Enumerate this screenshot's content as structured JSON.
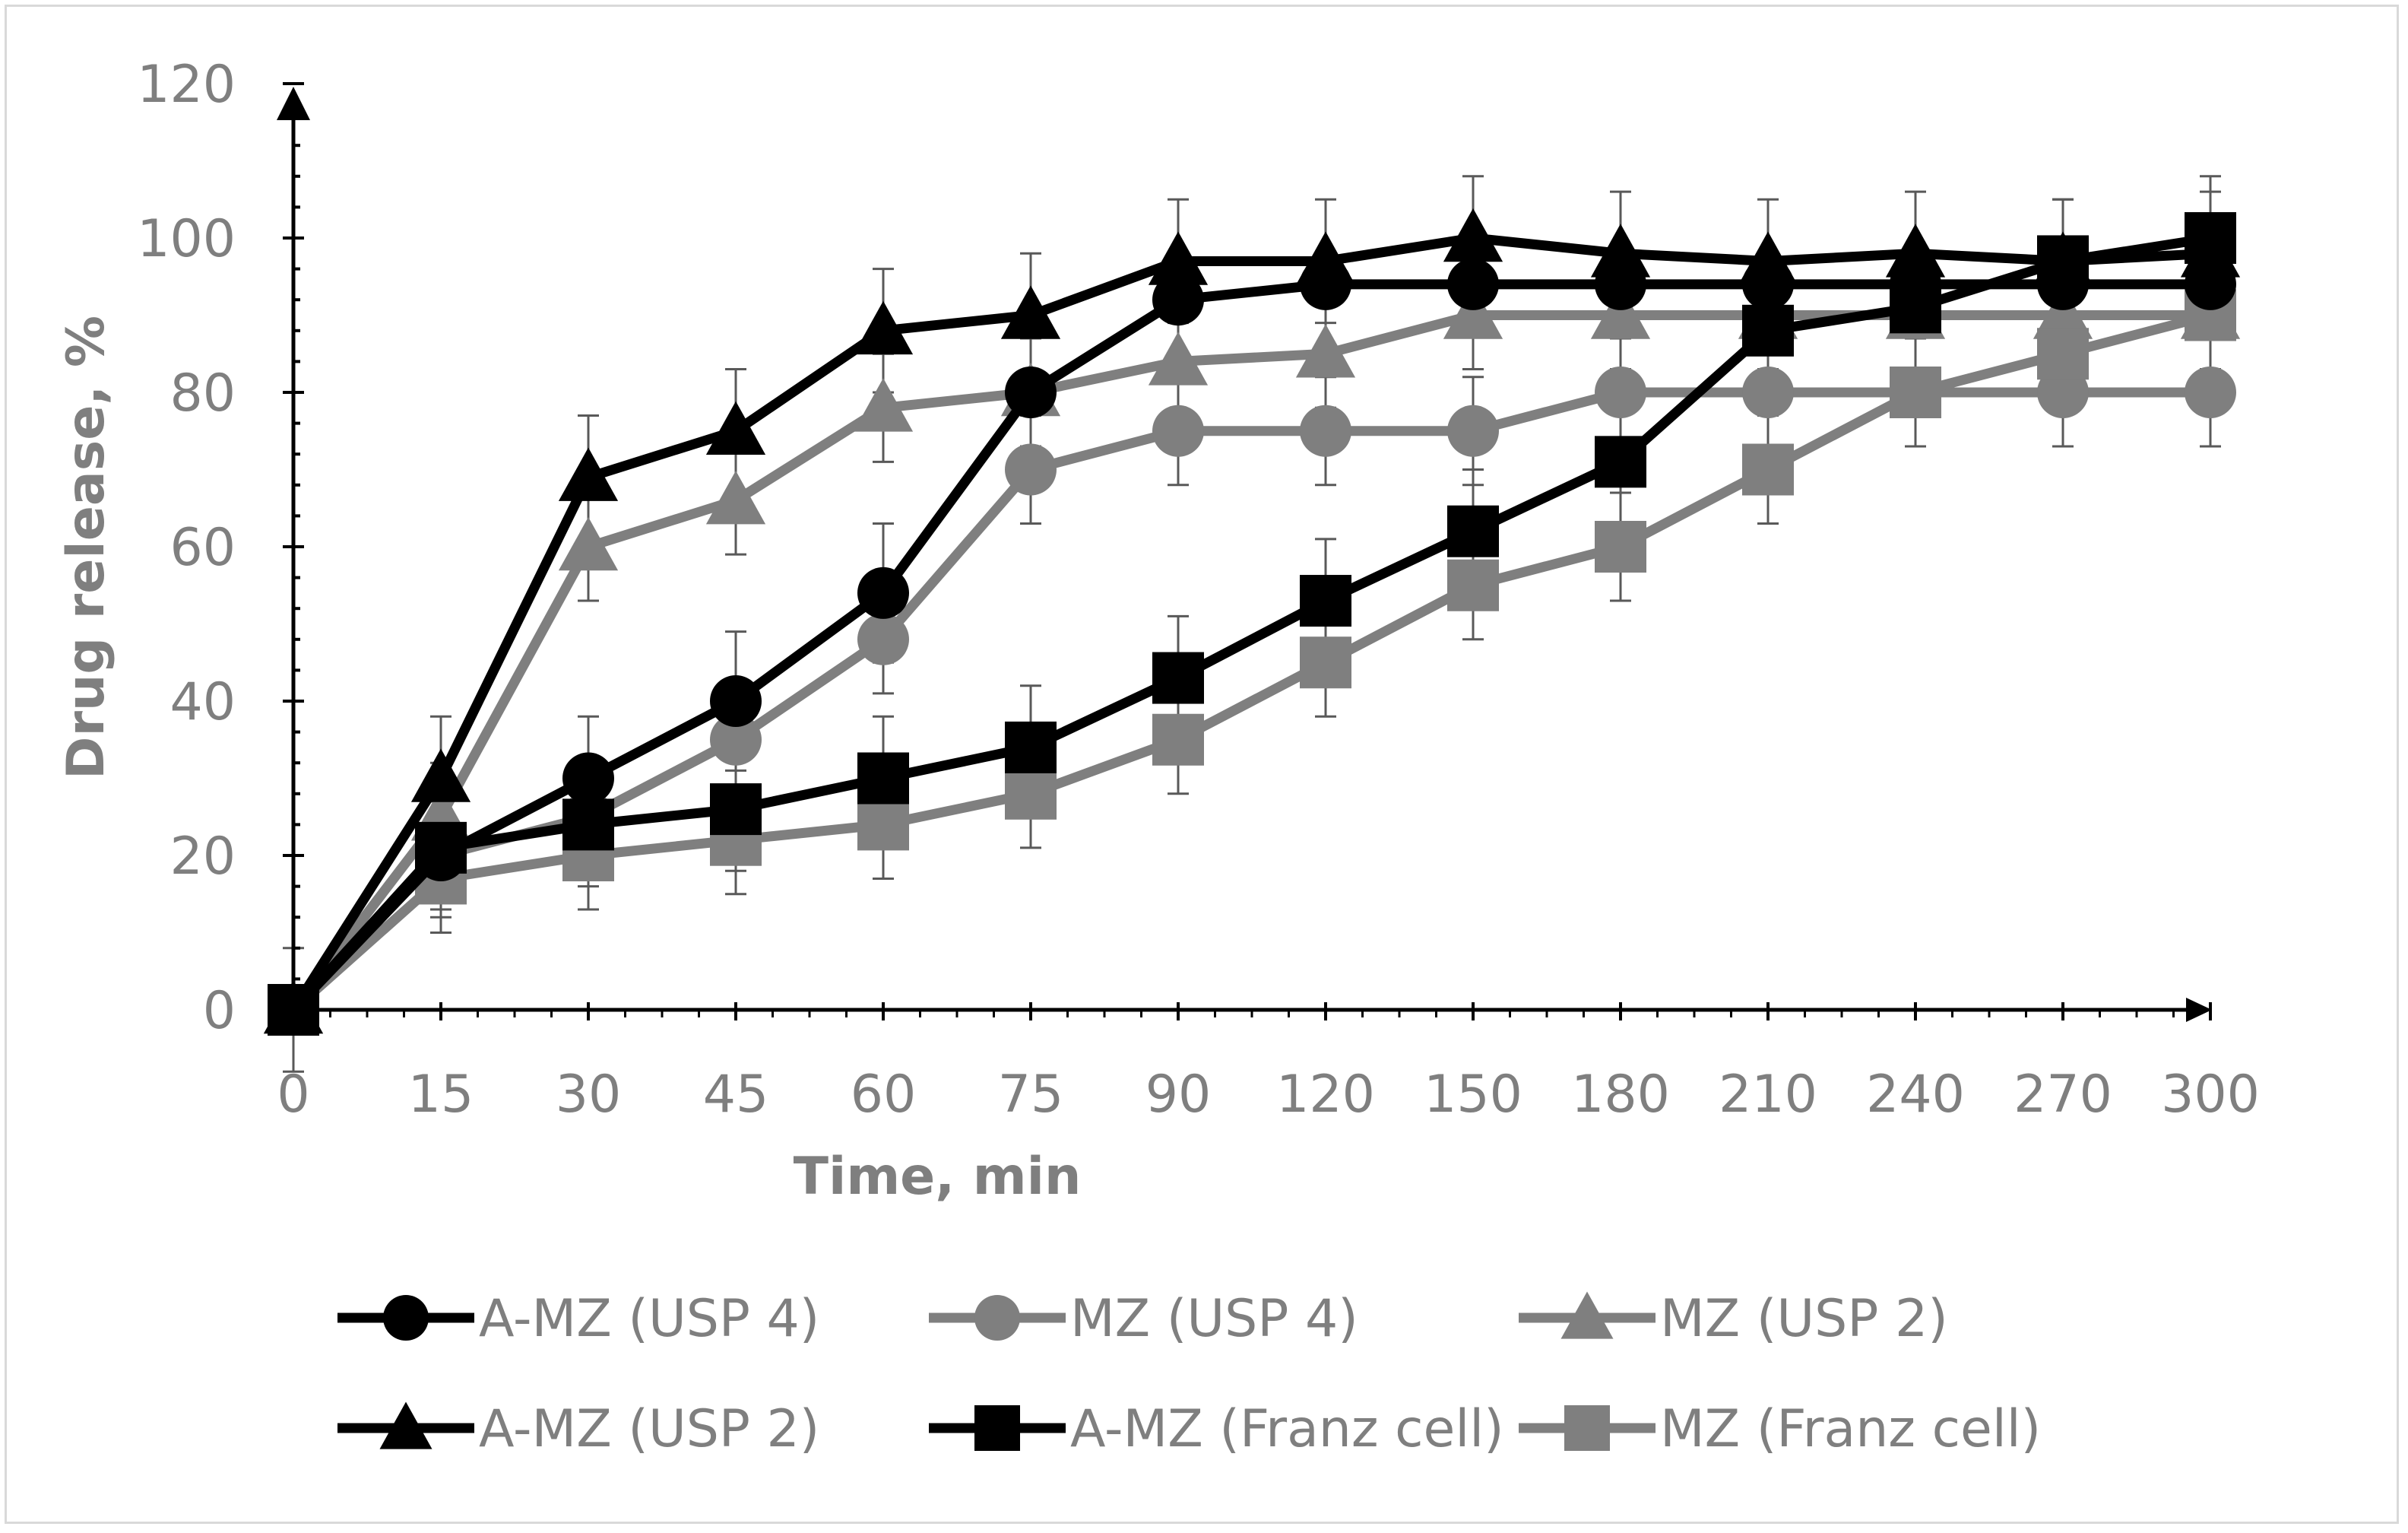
{
  "chart_data": {
    "type": "line",
    "title": "",
    "xlabel": "Time, min",
    "ylabel": "Drug release, %",
    "categories": [
      "0",
      "15",
      "30",
      "45",
      "60",
      "75",
      "90",
      "120",
      "150",
      "180",
      "210",
      "240",
      "270",
      "300"
    ],
    "ylim": [
      0,
      120
    ],
    "yticks": [
      "0",
      "20",
      "40",
      "60",
      "80",
      "100",
      "120"
    ],
    "legend_position": "bottom",
    "colors": {
      "black": "#000000",
      "gray": "#7f7f7f"
    },
    "series": [
      {
        "name": "A-MZ (USP 4)",
        "color": "#000000",
        "marker": "circle",
        "values": [
          0,
          20,
          30,
          40,
          54,
          80,
          92,
          94,
          94,
          94,
          94,
          94,
          94,
          94
        ],
        "errors": [
          0,
          8,
          8,
          9,
          9,
          0,
          0,
          0,
          0,
          0,
          0,
          0,
          0,
          0
        ]
      },
      {
        "name": "MZ (USP 4)",
        "color": "#7f7f7f",
        "marker": "circle",
        "values": [
          0,
          20,
          25,
          35,
          48,
          70,
          75,
          75,
          75,
          80,
          80,
          80,
          80,
          80
        ],
        "errors": [
          0,
          7,
          7,
          7,
          7,
          7,
          7,
          7,
          7,
          7,
          7,
          7,
          7,
          7
        ]
      },
      {
        "name": "MZ (USP 2)",
        "color": "#7f7f7f",
        "marker": "triangle",
        "values": [
          0,
          25,
          60,
          66,
          78,
          80,
          84,
          85,
          90,
          90,
          90,
          90,
          90,
          90
        ],
        "errors": [
          0,
          7,
          7,
          7,
          7,
          7,
          7,
          7,
          7,
          7,
          7,
          7,
          7,
          7
        ]
      },
      {
        "name": "A-MZ (USP 2)",
        "color": "#000000",
        "marker": "triangle",
        "values": [
          0,
          30,
          69,
          75,
          88,
          90,
          97,
          97,
          100,
          98,
          97,
          98,
          97,
          98
        ],
        "errors": [
          0,
          8,
          8,
          8,
          8,
          8,
          8,
          8,
          8,
          8,
          8,
          8,
          8,
          8
        ]
      },
      {
        "name": "A-MZ (Franz cell)",
        "color": "#000000",
        "marker": "square",
        "values": [
          0,
          21,
          24,
          26,
          30,
          34,
          43,
          53,
          62,
          71,
          88,
          91,
          97,
          100
        ],
        "errors": [
          0,
          8,
          8,
          8,
          8,
          8,
          8,
          8,
          8,
          8,
          8,
          8,
          8,
          8
        ]
      },
      {
        "name": "MZ (Franz cell)",
        "color": "#7f7f7f",
        "marker": "square",
        "values": [
          0,
          17,
          20,
          22,
          24,
          28,
          35,
          45,
          55,
          60,
          70,
          80,
          85,
          90
        ],
        "errors": [
          8,
          7,
          7,
          7,
          7,
          7,
          7,
          7,
          7,
          7,
          7,
          7,
          7,
          7
        ]
      }
    ]
  }
}
